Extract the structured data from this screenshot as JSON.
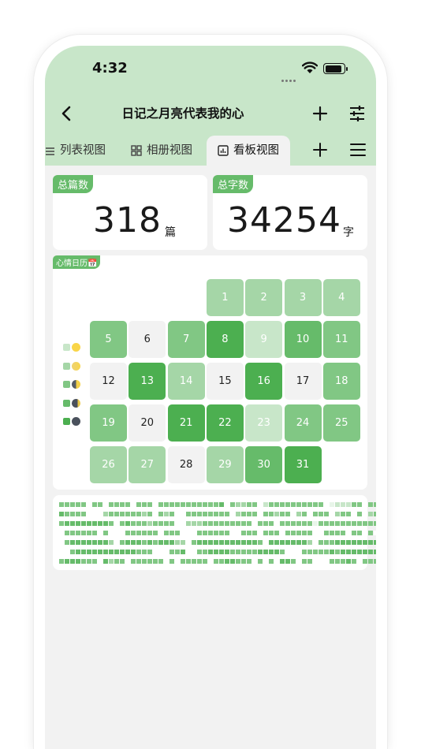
{
  "status_bar": {
    "time": "4:32"
  },
  "header": {
    "title": "日记之月亮代表我的心"
  },
  "tabs": [
    {
      "label": "列表视图",
      "icon": "list-icon"
    },
    {
      "label": "相册视图",
      "icon": "grid-icon"
    },
    {
      "label": "看板视图",
      "icon": "chart-icon",
      "active": true
    }
  ],
  "stats": {
    "total_entries": {
      "tag": "总篇数",
      "value": "318",
      "unit": "篇"
    },
    "total_words": {
      "tag": "总字数",
      "value": "34254",
      "unit": "字"
    }
  },
  "calendar": {
    "tag": "心情日历📅",
    "first_weekday": 3,
    "levels": [
      "#f2f2f2",
      "#c8e6c9",
      "#a5d6a7",
      "#81c784",
      "#66bb6a",
      "#4caf50"
    ],
    "days": [
      {
        "d": 1,
        "l": 2
      },
      {
        "d": 2,
        "l": 2
      },
      {
        "d": 3,
        "l": 2
      },
      {
        "d": 4,
        "l": 2
      },
      {
        "d": 5,
        "l": 3
      },
      {
        "d": 6,
        "l": 0
      },
      {
        "d": 7,
        "l": 3
      },
      {
        "d": 8,
        "l": 5
      },
      {
        "d": 9,
        "l": 1
      },
      {
        "d": 10,
        "l": 4
      },
      {
        "d": 11,
        "l": 3
      },
      {
        "d": 12,
        "l": 0
      },
      {
        "d": 13,
        "l": 5
      },
      {
        "d": 14,
        "l": 2
      },
      {
        "d": 15,
        "l": 0
      },
      {
        "d": 16,
        "l": 5
      },
      {
        "d": 17,
        "l": 0
      },
      {
        "d": 18,
        "l": 3
      },
      {
        "d": 19,
        "l": 3
      },
      {
        "d": 20,
        "l": 0
      },
      {
        "d": 21,
        "l": 5
      },
      {
        "d": 22,
        "l": 5
      },
      {
        "d": 23,
        "l": 1
      },
      {
        "d": 24,
        "l": 3
      },
      {
        "d": 25,
        "l": 3
      },
      {
        "d": 26,
        "l": 2
      },
      {
        "d": 27,
        "l": 2
      },
      {
        "d": 28,
        "l": 0
      },
      {
        "d": 29,
        "l": 2
      },
      {
        "d": 30,
        "l": 4
      },
      {
        "d": 31,
        "l": 5
      }
    ],
    "legend": [
      {
        "swatch": "#c8e6c9",
        "moon": "full-moon-icon"
      },
      {
        "swatch": "#a5d6a7",
        "moon": "waxing-gibbous-icon"
      },
      {
        "swatch": "#81c784",
        "moon": "half-moon-icon"
      },
      {
        "swatch": "#66bb6a",
        "moon": "crescent-moon-icon"
      },
      {
        "swatch": "#4caf50",
        "moon": "new-moon-icon"
      }
    ]
  },
  "heatmap": {
    "colors": [
      "#ffffff",
      "#e8f5e9",
      "#c8e6c9",
      "#a5d6a7",
      "#81c784",
      "#66bb6a",
      "#388e3c",
      "#1b5e20"
    ],
    "rows": [
      "44444044044440444044444444444504334402444444444401222440444550444",
      "54444000344444434043400444444440344404434403404440344040344405444",
      "45555555540454443444400333444444444044404444441444444444444404405",
      "04444440400044444404440004444440044404440444440044440440404040044",
      "04555555530455545455533045555555555540555555530444555555550555555",
      "00455555555555444000445004455554444455554000444445455555550005555",
      "45554440534404444440404444404455444040405540440004445404444440505"
    ]
  }
}
